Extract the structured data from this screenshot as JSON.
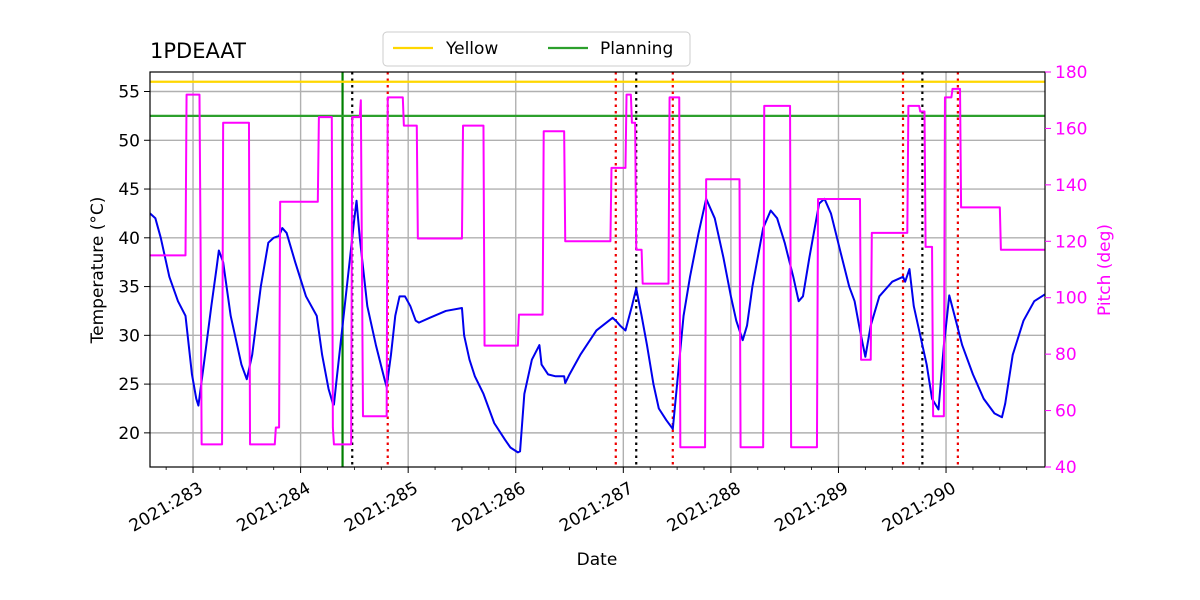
{
  "chart_data": {
    "type": "line",
    "title": "1PDEAAT",
    "xlabel": "Date",
    "ylabel": "Temperature ($^\\circ$C)",
    "ylabel_display": "Temperature (°C)",
    "y2label": "Pitch (deg)",
    "xlim": [
      282.6,
      290.92
    ],
    "ylim": [
      16.5,
      57
    ],
    "y2lim": [
      40,
      180
    ],
    "grid": true,
    "x_ticks": [
      {
        "value": 283,
        "label": "2021:283"
      },
      {
        "value": 284,
        "label": "2021:284"
      },
      {
        "value": 285,
        "label": "2021:285"
      },
      {
        "value": 286,
        "label": "2021:286"
      },
      {
        "value": 287,
        "label": "2021:287"
      },
      {
        "value": 288,
        "label": "2021:288"
      },
      {
        "value": 289,
        "label": "2021:289"
      },
      {
        "value": 290,
        "label": "2021:290"
      }
    ],
    "y_ticks": [
      20,
      25,
      30,
      35,
      40,
      45,
      50,
      55
    ],
    "y2_ticks": [
      40,
      60,
      80,
      100,
      120,
      140,
      160,
      180
    ],
    "limits": [
      {
        "name": "Yellow",
        "value": 56.0,
        "color": "#ffd700"
      },
      {
        "name": "Planning",
        "value": 52.5,
        "color": "#2ca02c"
      }
    ],
    "legend": {
      "placement": "top-center",
      "entries": [
        "Yellow",
        "Planning"
      ]
    },
    "colors": {
      "temperature": "#0000ee",
      "pitch": "#ff00ff",
      "red_marker": "#ee0000",
      "black_marker": "#000000",
      "now_marker": "#008000",
      "grid": "#b0b0b0"
    },
    "now_line": 284.39,
    "black_dotted_lines": [
      284.48,
      287.12,
      289.78
    ],
    "red_dotted_lines": [
      284.81,
      286.93,
      287.46,
      289.6,
      290.11
    ],
    "series": [
      {
        "name": "Temperature",
        "axis": "left",
        "color": "#0000ee",
        "points": [
          [
            282.6,
            42.5
          ],
          [
            282.65,
            42
          ],
          [
            282.7,
            40
          ],
          [
            282.78,
            36
          ],
          [
            282.86,
            33.5
          ],
          [
            282.93,
            32
          ],
          [
            282.95,
            30
          ],
          [
            282.99,
            26
          ],
          [
            283.03,
            23.5
          ],
          [
            283.05,
            22.8
          ],
          [
            283.1,
            27
          ],
          [
            283.17,
            33
          ],
          [
            283.22,
            37
          ],
          [
            283.24,
            38.7
          ],
          [
            283.28,
            37.5
          ],
          [
            283.35,
            32
          ],
          [
            283.45,
            27
          ],
          [
            283.5,
            25.5
          ],
          [
            283.55,
            28
          ],
          [
            283.63,
            35
          ],
          [
            283.7,
            39.5
          ],
          [
            283.75,
            40
          ],
          [
            283.8,
            40.2
          ],
          [
            283.83,
            41
          ],
          [
            283.87,
            40.5
          ],
          [
            283.95,
            37.5
          ],
          [
            284.05,
            34
          ],
          [
            284.15,
            32
          ],
          [
            284.2,
            28
          ],
          [
            284.26,
            24.5
          ],
          [
            284.3,
            23
          ],
          [
            284.31,
            22.9
          ],
          [
            284.33,
            25
          ],
          [
            284.4,
            32
          ],
          [
            284.45,
            37
          ],
          [
            284.5,
            42
          ],
          [
            284.52,
            43.8
          ],
          [
            284.55,
            40
          ],
          [
            284.62,
            33
          ],
          [
            284.7,
            29
          ],
          [
            284.78,
            25.5
          ],
          [
            284.8,
            24.7
          ],
          [
            284.84,
            28
          ],
          [
            284.88,
            32
          ],
          [
            284.92,
            34
          ],
          [
            284.97,
            34
          ],
          [
            285.02,
            33
          ],
          [
            285.07,
            31.5
          ],
          [
            285.1,
            31.3
          ],
          [
            285.2,
            31.8
          ],
          [
            285.35,
            32.5
          ],
          [
            285.5,
            32.8
          ],
          [
            285.52,
            30
          ],
          [
            285.57,
            27.5
          ],
          [
            285.62,
            25.8
          ],
          [
            285.7,
            24
          ],
          [
            285.8,
            21
          ],
          [
            285.9,
            19.3
          ],
          [
            285.95,
            18.5
          ],
          [
            286.02,
            18
          ],
          [
            286.04,
            18.1
          ],
          [
            286.08,
            24
          ],
          [
            286.15,
            27.5
          ],
          [
            286.22,
            29
          ],
          [
            286.24,
            27
          ],
          [
            286.3,
            26
          ],
          [
            286.37,
            25.8
          ],
          [
            286.45,
            25.8
          ],
          [
            286.46,
            25.1
          ],
          [
            286.5,
            26
          ],
          [
            286.6,
            28
          ],
          [
            286.75,
            30.5
          ],
          [
            286.9,
            31.8
          ],
          [
            286.93,
            31.5
          ],
          [
            286.97,
            31
          ],
          [
            287.02,
            30.5
          ],
          [
            287.08,
            33
          ],
          [
            287.12,
            34.8
          ],
          [
            287.17,
            32
          ],
          [
            287.22,
            29
          ],
          [
            287.28,
            25
          ],
          [
            287.33,
            22.5
          ],
          [
            287.4,
            21.3
          ],
          [
            287.46,
            20.4
          ],
          [
            287.5,
            25
          ],
          [
            287.56,
            32
          ],
          [
            287.62,
            36
          ],
          [
            287.7,
            40.5
          ],
          [
            287.77,
            44
          ],
          [
            287.85,
            42
          ],
          [
            287.93,
            38
          ],
          [
            288.0,
            34
          ],
          [
            288.05,
            31.5
          ],
          [
            288.08,
            30.5
          ],
          [
            288.11,
            29.5
          ],
          [
            288.15,
            31
          ],
          [
            288.2,
            35
          ],
          [
            288.3,
            41
          ],
          [
            288.37,
            42.8
          ],
          [
            288.43,
            42
          ],
          [
            288.5,
            39.5
          ],
          [
            288.58,
            36
          ],
          [
            288.63,
            33.5
          ],
          [
            288.67,
            34
          ],
          [
            288.73,
            38
          ],
          [
            288.82,
            43.5
          ],
          [
            288.87,
            44
          ],
          [
            288.93,
            42.5
          ],
          [
            289.02,
            38.5
          ],
          [
            289.1,
            35
          ],
          [
            289.15,
            33.5
          ],
          [
            289.2,
            30.5
          ],
          [
            289.25,
            27.8
          ],
          [
            289.3,
            31
          ],
          [
            289.38,
            34
          ],
          [
            289.5,
            35.5
          ],
          [
            289.6,
            36
          ],
          [
            289.62,
            35.5
          ],
          [
            289.66,
            36.8
          ],
          [
            289.7,
            33
          ],
          [
            289.76,
            30
          ],
          [
            289.82,
            27
          ],
          [
            289.87,
            23.5
          ],
          [
            289.93,
            22.4
          ],
          [
            289.98,
            29
          ],
          [
            290.01,
            32
          ],
          [
            290.03,
            34.1
          ],
          [
            290.08,
            32
          ],
          [
            290.15,
            29
          ],
          [
            290.25,
            26
          ],
          [
            290.35,
            23.5
          ],
          [
            290.45,
            22
          ],
          [
            290.52,
            21.6
          ],
          [
            290.55,
            23
          ],
          [
            290.62,
            28
          ],
          [
            290.72,
            31.5
          ],
          [
            290.82,
            33.5
          ],
          [
            290.92,
            34.2
          ]
        ]
      },
      {
        "name": "Pitch",
        "axis": "right",
        "color": "#ff00ff",
        "points": [
          [
            282.6,
            115
          ],
          [
            282.93,
            115
          ],
          [
            282.94,
            172
          ],
          [
            283.06,
            172
          ],
          [
            283.07,
            119
          ],
          [
            283.08,
            48
          ],
          [
            283.27,
            48
          ],
          [
            283.28,
            162
          ],
          [
            283.52,
            162
          ],
          [
            283.53,
            48
          ],
          [
            283.76,
            48
          ],
          [
            283.77,
            54
          ],
          [
            283.8,
            54
          ],
          [
            283.81,
            134
          ],
          [
            284.16,
            134
          ],
          [
            284.17,
            164
          ],
          [
            284.29,
            164
          ],
          [
            284.3,
            54
          ],
          [
            284.31,
            48
          ],
          [
            284.47,
            48
          ],
          [
            284.48,
            164
          ],
          [
            284.55,
            164
          ],
          [
            284.56,
            170
          ],
          [
            284.58,
            58
          ],
          [
            284.8,
            58
          ],
          [
            284.81,
            171
          ],
          [
            284.95,
            171
          ],
          [
            284.96,
            161
          ],
          [
            285.08,
            161
          ],
          [
            285.09,
            121
          ],
          [
            285.5,
            121
          ],
          [
            285.51,
            161
          ],
          [
            285.7,
            161
          ],
          [
            285.71,
            83
          ],
          [
            286.02,
            83
          ],
          [
            286.03,
            94
          ],
          [
            286.25,
            94
          ],
          [
            286.26,
            159
          ],
          [
            286.45,
            159
          ],
          [
            286.46,
            120
          ],
          [
            286.88,
            120
          ],
          [
            286.89,
            146
          ],
          [
            287.02,
            146
          ],
          [
            287.03,
            172
          ],
          [
            287.07,
            172
          ],
          [
            287.08,
            162
          ],
          [
            287.11,
            162
          ],
          [
            287.12,
            117
          ],
          [
            287.17,
            117
          ],
          [
            287.18,
            105
          ],
          [
            287.42,
            105
          ],
          [
            287.43,
            171
          ],
          [
            287.52,
            171
          ],
          [
            287.53,
            47
          ],
          [
            287.76,
            47
          ],
          [
            287.77,
            142
          ],
          [
            288.08,
            142
          ],
          [
            288.09,
            47
          ],
          [
            288.3,
            47
          ],
          [
            288.31,
            168
          ],
          [
            288.55,
            168
          ],
          [
            288.56,
            47
          ],
          [
            288.8,
            47
          ],
          [
            288.81,
            135
          ],
          [
            289.2,
            135
          ],
          [
            289.21,
            78
          ],
          [
            289.3,
            78
          ],
          [
            289.31,
            123
          ],
          [
            289.64,
            123
          ],
          [
            289.65,
            168
          ],
          [
            289.75,
            168
          ],
          [
            289.76,
            166
          ],
          [
            289.8,
            166
          ],
          [
            289.81,
            118
          ],
          [
            289.87,
            118
          ],
          [
            289.88,
            58
          ],
          [
            289.98,
            58
          ],
          [
            289.99,
            171
          ],
          [
            290.05,
            171
          ],
          [
            290.06,
            174
          ],
          [
            290.13,
            174
          ],
          [
            290.14,
            132
          ],
          [
            290.5,
            132
          ],
          [
            290.51,
            117
          ],
          [
            290.92,
            117
          ]
        ]
      }
    ]
  }
}
